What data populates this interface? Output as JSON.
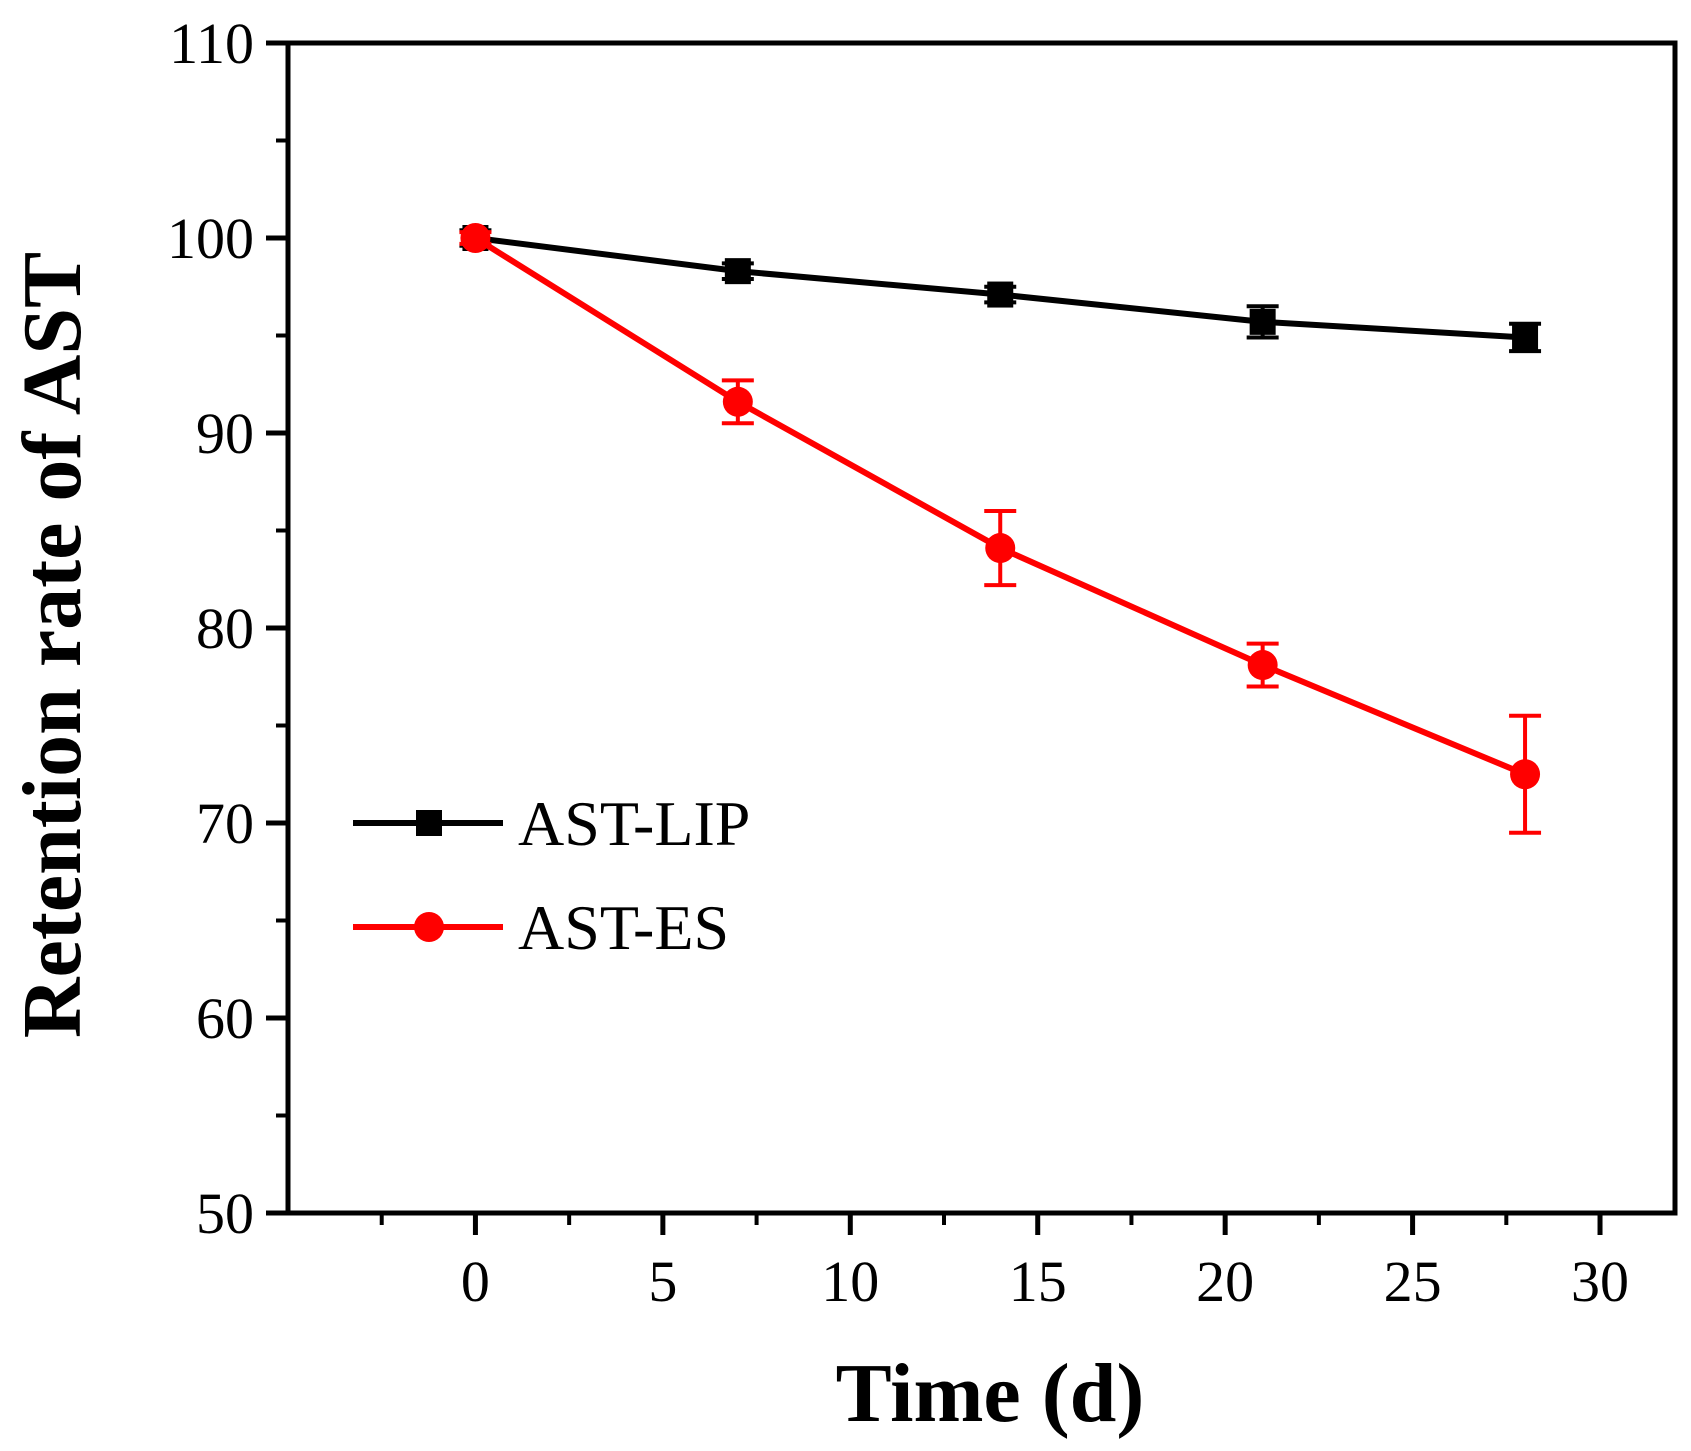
{
  "chart_data": {
    "type": "line",
    "title": "",
    "xlabel": "Time (d)",
    "ylabel": "Retention rate of AST",
    "xlim": [
      -5,
      32
    ],
    "ylim": [
      50,
      110
    ],
    "x_ticks": [
      0,
      5,
      10,
      15,
      20,
      25,
      30
    ],
    "x_tick_labels": [
      "0",
      "5",
      "10",
      "15",
      "20",
      "25",
      "30"
    ],
    "y_ticks": [
      50,
      60,
      70,
      80,
      90,
      100,
      110
    ],
    "y_tick_labels": [
      "50",
      "60",
      "70",
      "80",
      "90",
      "100",
      "110"
    ],
    "grid": false,
    "legend_position": "center-left",
    "series": [
      {
        "name": "AST-LIP",
        "color": "#000000",
        "marker": "square",
        "x": [
          0,
          7,
          14,
          21,
          28
        ],
        "y": [
          100.0,
          98.3,
          97.1,
          95.7,
          94.9
        ],
        "error": [
          0.4,
          0.4,
          0.4,
          0.8,
          0.7
        ]
      },
      {
        "name": "AST-ES",
        "color": "#ff0000",
        "marker": "circle",
        "x": [
          0,
          7,
          14,
          21,
          28
        ],
        "y": [
          100.0,
          91.6,
          84.1,
          78.1,
          72.5
        ],
        "error": [
          0.3,
          1.1,
          1.9,
          1.1,
          3.0
        ]
      }
    ]
  }
}
